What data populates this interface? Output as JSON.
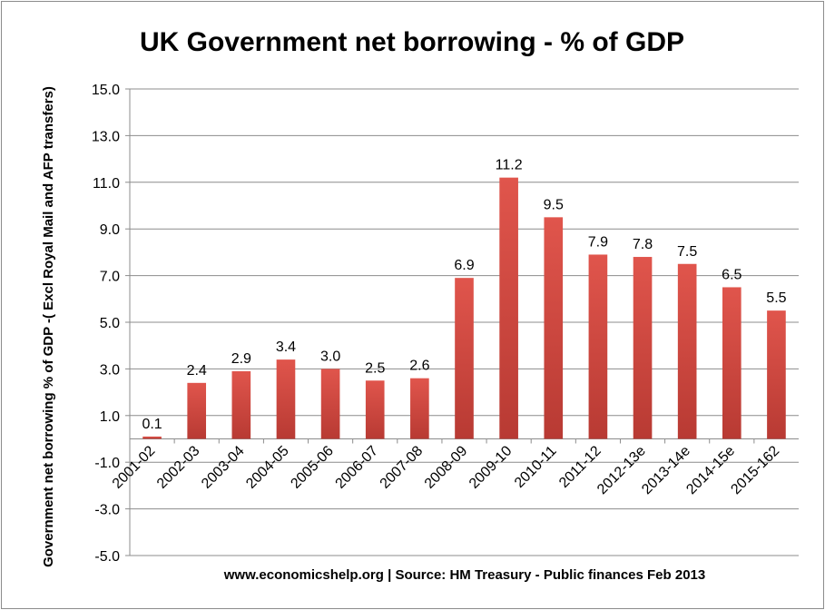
{
  "chart_data": {
    "type": "bar",
    "title": "UK Government net borrowing - % of GDP",
    "ylabel": "Government net borrowing % of GDP -( Excl Royal Mail and AFP transfers)",
    "source": "www.economicshelp.org | Source: HM Treasury - Public finances Feb 2013",
    "categories": [
      "2001-02",
      "2002-03",
      "2003-04",
      "2004-05",
      "2005-06",
      "2006-07",
      "2007-08",
      "2008-09",
      "2009-10",
      "2010-11",
      "2011-12",
      "2012-13e",
      "2013-14e",
      "2014-15e",
      "2015-162"
    ],
    "values": [
      0.1,
      2.4,
      2.9,
      3.4,
      3.0,
      2.5,
      2.6,
      6.9,
      11.2,
      9.5,
      7.9,
      7.8,
      7.5,
      6.5,
      5.5
    ],
    "value_labels": [
      "0.1",
      "2.4",
      "2.9",
      "3.4",
      "3.0",
      "2.5",
      "2.6",
      "6.9",
      "11.2",
      "9.5",
      "7.9",
      "7.8",
      "7.5",
      "6.5",
      "5.5"
    ],
    "y_ticks": [
      -5.0,
      -3.0,
      -1.0,
      1.0,
      3.0,
      5.0,
      7.0,
      9.0,
      11.0,
      13.0,
      15.0
    ],
    "y_tick_labels": [
      "-5.0",
      "-3.0",
      "-1.0",
      "1.0",
      "3.0",
      "5.0",
      "7.0",
      "9.0",
      "11.0",
      "13.0",
      "15.0"
    ],
    "ylim": [
      -5,
      15
    ],
    "grid": true,
    "legend": "none",
    "bar_color_top": "#e0554c",
    "bar_color_bottom": "#b83a33"
  }
}
